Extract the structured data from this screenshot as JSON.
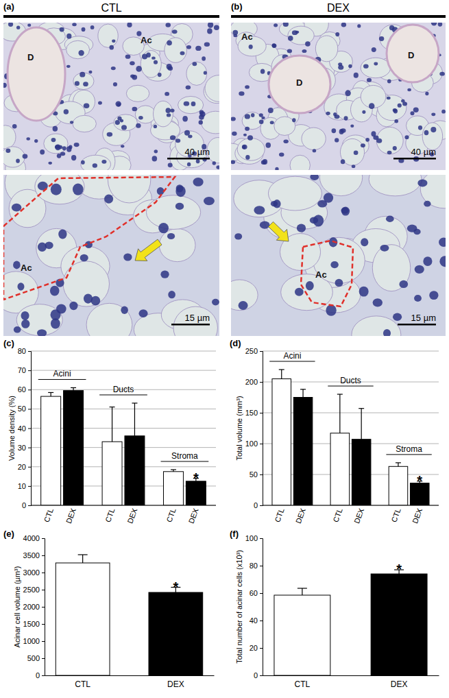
{
  "images": [
    {
      "panel": "(a)",
      "header": "CTL",
      "views": [
        {
          "labels": [
            "D",
            "Ac"
          ],
          "scale_bar": "40 µm"
        },
        {
          "labels": [
            "Ac"
          ],
          "scale_bar": "15 µm"
        }
      ]
    },
    {
      "panel": "(b)",
      "header": "DEX",
      "views": [
        {
          "labels": [
            "Ac",
            "D",
            "D"
          ],
          "scale_bar": "40 µm"
        },
        {
          "labels": [
            "Ac"
          ],
          "scale_bar": "15 µm"
        }
      ]
    }
  ],
  "chart_data": [
    {
      "type": "bar",
      "panel": "(c)",
      "ylabel": "Volume density (%)",
      "categories": [
        "Acini",
        "Ducts",
        "Stroma"
      ],
      "series": [
        {
          "name": "CTL",
          "color": "#ffffff",
          "values": [
            56.5,
            33,
            17.5
          ],
          "errors": [
            2,
            18,
            1
          ]
        },
        {
          "name": "DEX",
          "color": "#000000",
          "values": [
            59.5,
            36,
            12.5
          ],
          "errors": [
            1.5,
            17,
            1.5
          ]
        }
      ],
      "ylim": [
        0,
        80
      ],
      "yticks": [
        0,
        10,
        20,
        30,
        40,
        50,
        60,
        70,
        80
      ],
      "grid": true,
      "annotations": [
        {
          "text": "*",
          "series": "DEX",
          "category": "Stroma"
        }
      ]
    },
    {
      "type": "bar",
      "panel": "(d)",
      "ylabel": "Total volume (mm³)",
      "categories": [
        "Acini",
        "Ducts",
        "Stroma"
      ],
      "series": [
        {
          "name": "CTL",
          "color": "#ffffff",
          "values": [
            205,
            117,
            63
          ],
          "errors": [
            15,
            63,
            6
          ]
        },
        {
          "name": "DEX",
          "color": "#000000",
          "values": [
            175,
            107,
            36
          ],
          "errors": [
            13,
            50,
            3
          ]
        }
      ],
      "ylim": [
        0,
        250
      ],
      "yticks": [
        0,
        50,
        100,
        150,
        200,
        250
      ],
      "grid": true,
      "annotations": [
        {
          "text": "*",
          "series": "DEX",
          "category": "Stroma"
        }
      ]
    },
    {
      "type": "bar",
      "panel": "(e)",
      "ylabel": "Acinar cell volume (µm³)",
      "categories": [
        "CTL",
        "DEX"
      ],
      "values": [
        3280,
        2420
      ],
      "errors": [
        240,
        150
      ],
      "colors": [
        "#ffffff",
        "#000000"
      ],
      "ylim": [
        0,
        4000
      ],
      "yticks": [
        0,
        500,
        1000,
        1500,
        2000,
        2500,
        3000,
        3500,
        4000
      ],
      "grid": false,
      "annotations": [
        {
          "text": "*",
          "category": "DEX"
        }
      ]
    },
    {
      "type": "bar",
      "panel": "(f)",
      "ylabel": "Total number of acinar cells (x10³)",
      "categories": [
        "CTL",
        "DEX"
      ],
      "values": [
        58.5,
        74
      ],
      "errors": [
        5,
        3
      ],
      "colors": [
        "#ffffff",
        "#000000"
      ],
      "ylim": [
        0,
        100
      ],
      "yticks": [
        0,
        20,
        40,
        60,
        80,
        100
      ],
      "grid": false,
      "annotations": [
        {
          "text": "*",
          "category": "DEX"
        }
      ]
    }
  ]
}
